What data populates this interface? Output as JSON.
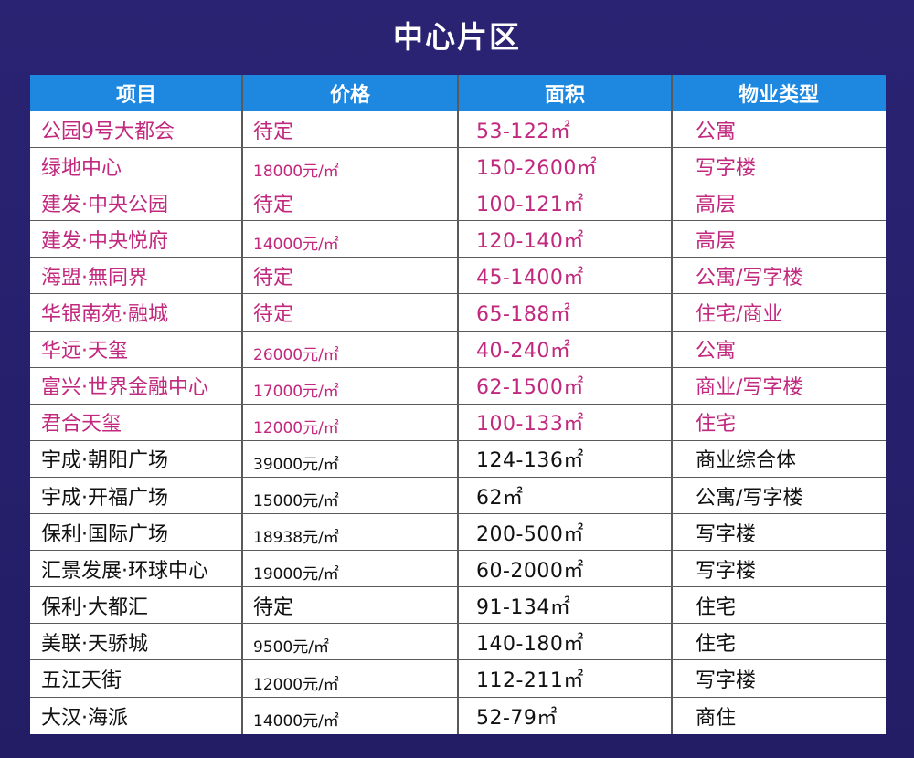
{
  "title": "中心片区",
  "headers": [
    "项目",
    "价格",
    "面积",
    "物业类型"
  ],
  "rows": [
    {
      "name": "公园9号大都会",
      "price": "待定",
      "area": "53-122㎡",
      "type": "公寓",
      "highlight": true
    },
    {
      "name": "绿地中心",
      "price": "18000元/㎡",
      "area": "150-2600㎡",
      "type": "写字楼",
      "highlight": true
    },
    {
      "name": "建发·中央公园",
      "price": "待定",
      "area": "100-121㎡",
      "type": "高层",
      "highlight": true
    },
    {
      "name": "建发·中央悦府",
      "price": "14000元/㎡",
      "area": "120-140㎡",
      "type": "高层",
      "highlight": true
    },
    {
      "name": "海盟·無同界",
      "price": "待定",
      "area": "45-1400㎡",
      "type": "公寓/写字楼",
      "highlight": true
    },
    {
      "name": "华银南苑·融城",
      "price": "待定",
      "area": "65-188㎡",
      "type": "住宅/商业",
      "highlight": true
    },
    {
      "name": "华远·天玺",
      "price": "26000元/㎡",
      "area": "40-240㎡",
      "type": "公寓",
      "highlight": true
    },
    {
      "name": "富兴·世界金融中心",
      "price": "17000元/㎡",
      "area": "62-1500㎡",
      "type": "商业/写字楼",
      "highlight": true
    },
    {
      "name": "君合天玺",
      "price": "12000元/㎡",
      "area": "100-133㎡",
      "type": "住宅",
      "highlight": true
    },
    {
      "name": "宇成·朝阳广场",
      "price": "39000元/㎡",
      "area": "124-136㎡",
      "type": "商业综合体",
      "highlight": false
    },
    {
      "name": "宇成·开福广场",
      "price": "15000元/㎡",
      "area": "62㎡",
      "type": "公寓/写字楼",
      "highlight": false
    },
    {
      "name": "保利·国际广场",
      "price": "18938元/㎡",
      "area": "200-500㎡",
      "type": "写字楼",
      "highlight": false
    },
    {
      "name": "汇景发展·环球中心",
      "price": "19000元/㎡",
      "area": "60-2000㎡",
      "type": "写字楼",
      "highlight": false
    },
    {
      "name": "保利·大都汇",
      "price": "待定",
      "area": "91-134㎡",
      "type": "住宅",
      "highlight": false
    },
    {
      "name": "美联·天骄城",
      "price": "9500元/㎡",
      "area": "140-180㎡",
      "type": "住宅",
      "highlight": false
    },
    {
      "name": "五江天街",
      "price": "12000元/㎡",
      "area": "112-211㎡",
      "type": "写字楼",
      "highlight": false
    },
    {
      "name": "大汉·海派",
      "price": "14000元/㎡",
      "area": "52-79㎡",
      "type": "商住",
      "highlight": false
    }
  ],
  "colors": {
    "background": "#27206e",
    "header": "#1e88e0",
    "highlight_text": "#c1287e",
    "normal_text": "#111111"
  }
}
